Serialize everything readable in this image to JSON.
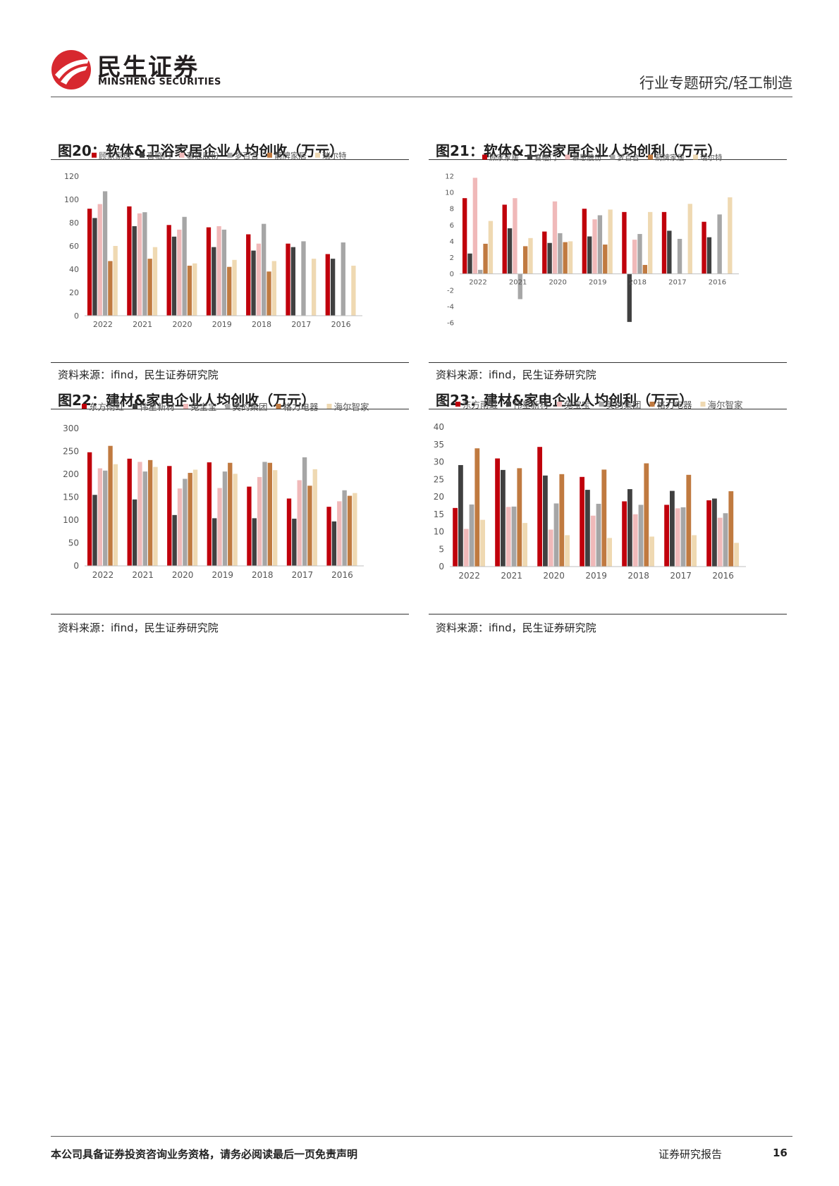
{
  "header": {
    "brand_cn": "民生证券",
    "brand_en": "MINSHENG SECURITIES",
    "report_type": "行业专题研究/轻工制造"
  },
  "colors": [
    "#c0000b",
    "#404040",
    "#f0b9b9",
    "#a6a6a6",
    "#c07a40",
    "#efd9b2"
  ],
  "figures": [
    {
      "title": "图20：软体&卫浴家居企业人均创收（万元）",
      "source": "资料来源：ifind，民生证券研究院",
      "chart_data": {
        "type": "bar",
        "categories": [
          "2022",
          "2021",
          "2020",
          "2019",
          "2018",
          "2017",
          "2016"
        ],
        "ylim": [
          0,
          120
        ],
        "yticks": [
          0,
          20,
          40,
          60,
          80,
          100,
          120
        ],
        "legend_position": "top",
        "series": [
          {
            "name": "顾家家居",
            "values": [
              92,
              94,
              78,
              76,
              70,
              62,
              53
            ]
          },
          {
            "name": "喜临门",
            "values": [
              84,
              77,
              68,
              59,
              56,
              59,
              49
            ]
          },
          {
            "name": "慕思股份",
            "values": [
              96,
              88,
              74,
              77,
              62,
              null,
              null
            ]
          },
          {
            "name": "梦百合",
            "values": [
              107,
              89,
              85,
              74,
              79,
              64,
              63
            ]
          },
          {
            "name": "箭牌家居",
            "values": [
              47,
              49,
              43,
              42,
              38,
              null,
              null
            ]
          },
          {
            "name": "瑞尔特",
            "values": [
              60,
              59,
              45,
              48,
              47,
              49,
              43
            ]
          }
        ]
      }
    },
    {
      "title": "图21：软体&卫浴家居企业人均创利（万元）",
      "source": "资料来源：ifind，民生证券研究院",
      "chart_data": {
        "type": "bar",
        "categories": [
          "2022",
          "2021",
          "2020",
          "2019",
          "2018",
          "2017",
          "2016"
        ],
        "ylim": [
          -6,
          12
        ],
        "yticks": [
          -6,
          -4,
          -2,
          0,
          2,
          4,
          6,
          8,
          10,
          12
        ],
        "legend_position": "top",
        "series": [
          {
            "name": "顾家家居",
            "values": [
              9.3,
              8.5,
              5.2,
              8.0,
              7.6,
              7.6,
              6.4
            ]
          },
          {
            "name": "喜临门",
            "values": [
              2.5,
              5.6,
              3.8,
              4.6,
              -5.9,
              5.3,
              4.5
            ]
          },
          {
            "name": "慕思股份",
            "values": [
              11.8,
              9.3,
              8.9,
              6.7,
              4.2,
              null,
              null
            ]
          },
          {
            "name": "梦百合",
            "values": [
              0.5,
              -3.1,
              5.0,
              7.2,
              4.9,
              4.3,
              7.3
            ]
          },
          {
            "name": "箭牌家居",
            "values": [
              3.7,
              3.4,
              3.9,
              3.6,
              1.1,
              null,
              null
            ]
          },
          {
            "name": "瑞尔特",
            "values": [
              6.5,
              4.4,
              4.0,
              7.9,
              7.6,
              8.6,
              9.4
            ]
          }
        ]
      }
    },
    {
      "title": "图22：建材&家电企业人均创收（万元）",
      "source": "资料来源：ifind，民生证券研究院",
      "chart_data": {
        "type": "bar",
        "categories": [
          "2022",
          "2021",
          "2020",
          "2019",
          "2018",
          "2017",
          "2016"
        ],
        "ylim": [
          0,
          300
        ],
        "yticks": [
          0,
          50,
          100,
          150,
          200,
          250,
          300
        ],
        "legend_position": "top",
        "series": [
          {
            "name": "东方雨虹",
            "values": [
              248,
              234,
              218,
              226,
              173,
              147,
              129
            ]
          },
          {
            "name": "伟星新材",
            "values": [
              155,
              145,
              111,
              104,
              104,
              103,
              97
            ]
          },
          {
            "name": "兔宝宝",
            "values": [
              213,
              227,
              169,
              170,
              194,
              187,
              141
            ]
          },
          {
            "name": "美的集团",
            "values": [
              208,
              206,
              190,
              206,
              227,
              237,
              165
            ]
          },
          {
            "name": "格力电器",
            "values": [
              262,
              231,
              203,
              225,
              225,
              175,
              153
            ]
          },
          {
            "name": "海尔智家",
            "values": [
              222,
              216,
              210,
              201,
              209,
              211,
              159
            ]
          }
        ]
      }
    },
    {
      "title": "图23：建材&家电企业人均创利（万元）",
      "source": "资料来源：ifind，民生证券研究院",
      "chart_data": {
        "type": "bar",
        "categories": [
          "2022",
          "2021",
          "2020",
          "2019",
          "2018",
          "2017",
          "2016"
        ],
        "ylim": [
          0,
          40
        ],
        "yticks": [
          0,
          5,
          10,
          15,
          20,
          25,
          30,
          35,
          40
        ],
        "legend_position": "top",
        "series": [
          {
            "name": "东方雨虹",
            "values": [
              16.8,
              31.0,
              34.3,
              25.7,
              18.7,
              17.7,
              19.0
            ]
          },
          {
            "name": "伟星新材",
            "values": [
              29.1,
              27.7,
              26.1,
              22.0,
              22.2,
              21.7,
              19.5
            ]
          },
          {
            "name": "兔宝宝",
            "values": [
              10.8,
              17.1,
              10.6,
              14.6,
              15.0,
              16.7,
              14.0
            ]
          },
          {
            "name": "美的集团",
            "values": [
              17.8,
              17.2,
              18.1,
              18.0,
              17.7,
              17.0,
              15.3
            ]
          },
          {
            "name": "格力电器",
            "values": [
              33.9,
              28.2,
              26.5,
              27.8,
              29.6,
              26.3,
              21.6
            ]
          },
          {
            "name": "海尔智家",
            "values": [
              13.4,
              12.5,
              9.0,
              8.2,
              8.6,
              9.0,
              6.8
            ]
          }
        ]
      }
    }
  ],
  "footer": {
    "disclaimer": "本公司具备证券投资咨询业务资格，请务必阅读最后一页免责声明",
    "doc_type": "证券研究报告",
    "page": "16"
  }
}
